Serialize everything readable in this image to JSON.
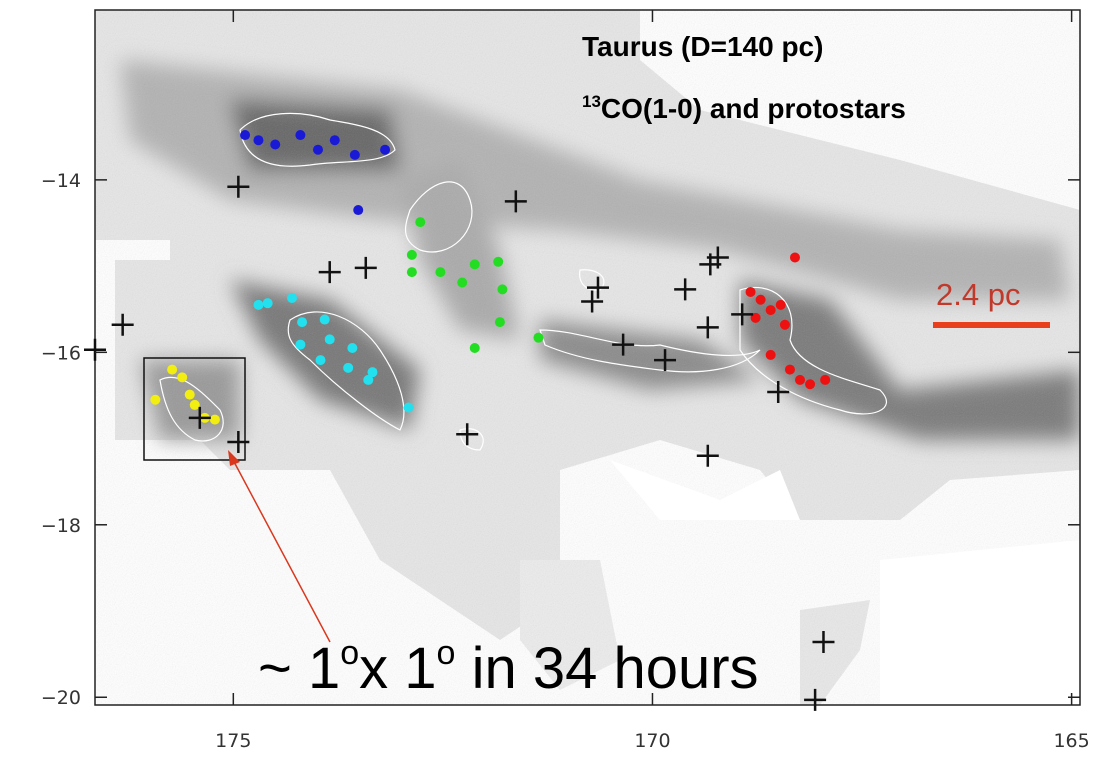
{
  "chart_data": {
    "type": "scatter",
    "title": "Taurus (D=140 pc)",
    "subtitle_parts": [
      "13",
      "CO(1-0) and protostars"
    ],
    "scale_label": "2.4 pc",
    "caption_parts": [
      "~ 1",
      "o",
      "x 1",
      "o",
      " in 34 hours"
    ],
    "xlim": [
      176.65,
      164.9
    ],
    "ylim": [
      -20.09,
      -12.03
    ],
    "xticks": [
      175,
      170,
      165
    ],
    "yticks": [
      {
        "value": -14,
        "label": "−14"
      },
      {
        "value": -16,
        "label": "−16"
      },
      {
        "value": -18,
        "label": "−18"
      },
      {
        "value": -20,
        "label": "−20"
      }
    ],
    "series": [
      {
        "color": "#1a1ad6",
        "marker": "dot",
        "x": [
          174.86,
          174.7,
          174.5,
          174.2,
          173.99,
          173.79,
          173.55,
          173.19,
          173.51
        ],
        "y": [
          -13.48,
          -13.54,
          -13.59,
          -13.48,
          -13.65,
          -13.54,
          -13.71,
          -13.65,
          -14.35
        ]
      },
      {
        "color": "#22dd22",
        "marker": "dot",
        "x": [
          172.77,
          172.87,
          172.87,
          172.53,
          172.27,
          172.12,
          171.84,
          171.79,
          171.82,
          172.12,
          171.36
        ],
        "y": [
          -14.49,
          -14.87,
          -15.07,
          -15.07,
          -15.19,
          -14.98,
          -14.95,
          -15.27,
          -15.65,
          -15.95,
          -15.83
        ]
      },
      {
        "color": "#22e0ee",
        "marker": "dot",
        "x": [
          174.7,
          174.59,
          174.3,
          174.18,
          173.91,
          174.2,
          173.85,
          173.58,
          173.96,
          173.63,
          173.34,
          173.39,
          172.91
        ],
        "y": [
          -15.45,
          -15.43,
          -15.37,
          -15.65,
          -15.62,
          -15.91,
          -15.85,
          -15.95,
          -16.09,
          -16.18,
          -16.23,
          -16.32,
          -16.64
        ]
      },
      {
        "color": "#ee1111",
        "marker": "dot",
        "x": [
          168.3,
          168.83,
          168.71,
          168.59,
          168.47,
          168.77,
          168.42,
          168.59,
          168.36,
          168.24,
          168.12,
          167.94
        ],
        "y": [
          -14.9,
          -15.3,
          -15.39,
          -15.51,
          -15.45,
          -15.6,
          -15.68,
          -16.03,
          -16.2,
          -16.32,
          -16.37,
          -16.32
        ]
      },
      {
        "color": "#f2ee10",
        "marker": "dot",
        "x": [
          175.73,
          175.61,
          175.52,
          175.93,
          175.46,
          175.34,
          175.22
        ],
        "y": [
          -16.2,
          -16.29,
          -16.49,
          -16.55,
          -16.61,
          -16.76,
          -16.78
        ]
      },
      {
        "color": "#111111",
        "marker": "plus",
        "x": [
          174.94,
          174.94,
          175.4,
          176.32,
          176.65,
          173.85,
          173.42,
          171.63,
          172.21,
          170.72,
          170.65,
          169.61,
          169.31,
          169.22,
          169.34,
          168.93,
          168.5,
          169.34,
          170.35,
          169.85,
          168.06,
          167.96
        ],
        "y": [
          -14.08,
          -17.04,
          -16.76,
          -15.68,
          -15.97,
          -15.07,
          -15.02,
          -14.25,
          -16.95,
          -15.41,
          -15.25,
          -15.27,
          -14.98,
          -14.9,
          -15.71,
          -15.56,
          -16.46,
          -17.2,
          -15.91,
          -16.09,
          -20.03,
          -19.36
        ]
      }
    ]
  }
}
